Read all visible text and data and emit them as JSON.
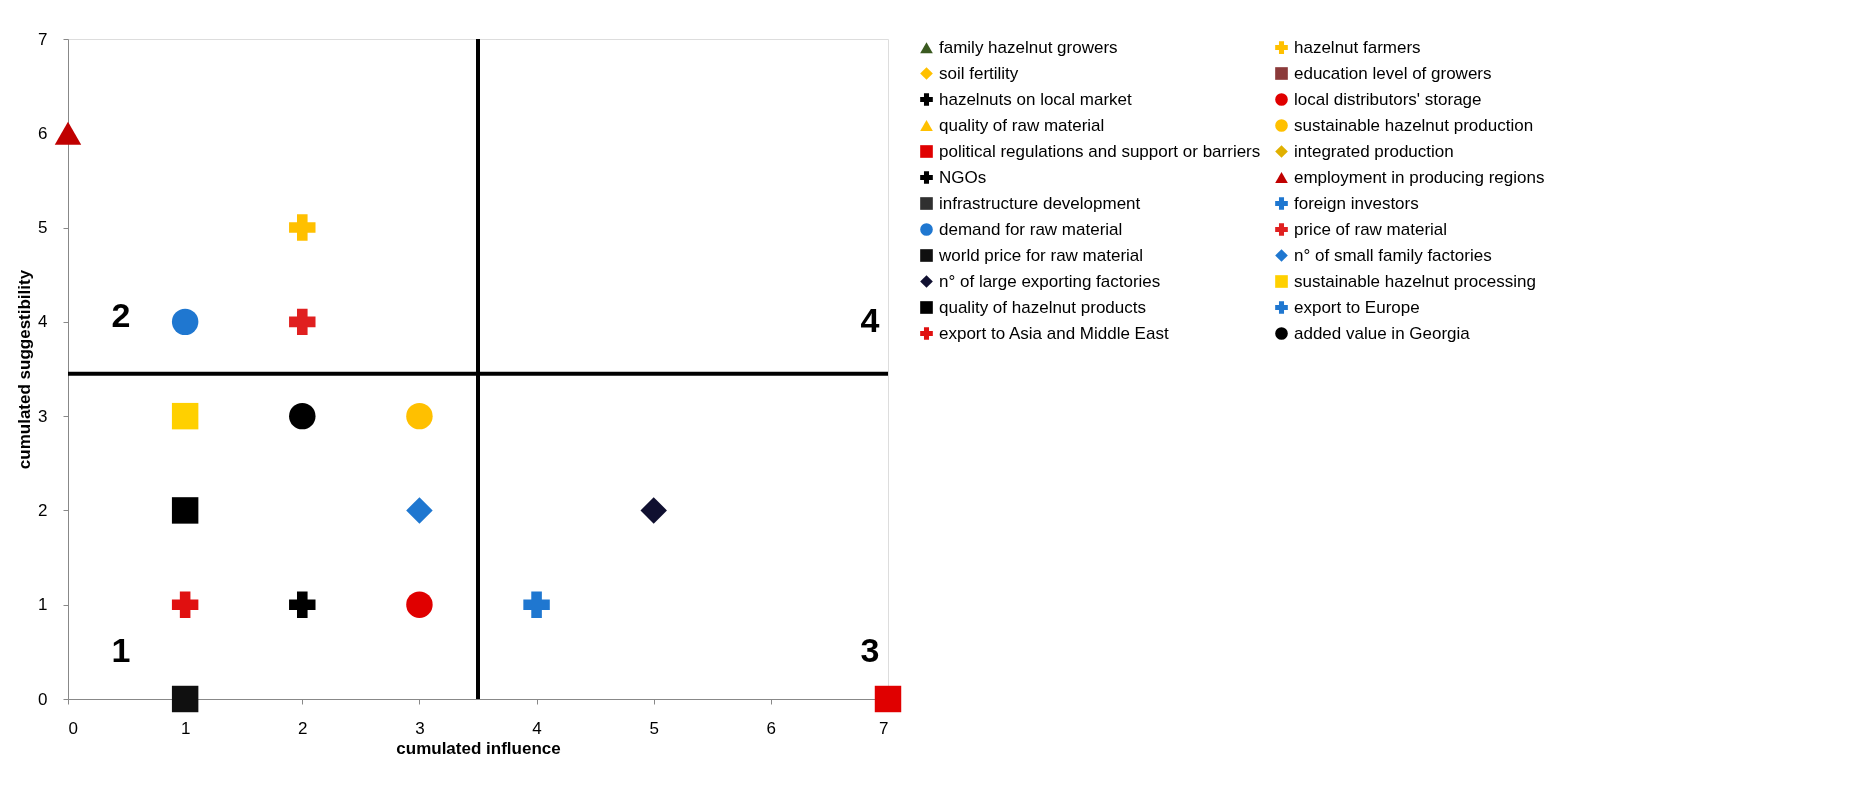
{
  "chart_data": {
    "type": "scatter",
    "xlabel": "cumulated influence",
    "ylabel": "cumulated suggestibility",
    "xlim": [
      0,
      7
    ],
    "ylim": [
      0,
      7
    ],
    "xticks": [
      0,
      1,
      2,
      3,
      4,
      5,
      6,
      7
    ],
    "yticks": [
      0,
      1,
      2,
      3,
      4,
      5,
      6,
      7
    ],
    "grid": false,
    "legend": "right",
    "series": [
      {
        "name": "family hazelnut growers",
        "color": "#3a5a20",
        "marker": "triangle",
        "x": [
          null
        ],
        "values": [
          null
        ]
      },
      {
        "name": "soil fertility",
        "color": "#ffc000",
        "marker": "diamond",
        "x": [
          null
        ],
        "values": [
          null
        ]
      },
      {
        "name": "hazelnuts on local market",
        "color": "#000000",
        "marker": "cross",
        "x": [
          null
        ],
        "values": [
          null
        ]
      },
      {
        "name": "quality of raw material",
        "color": "#ffc000",
        "marker": "triangle",
        "x": [
          null
        ],
        "values": [
          null
        ]
      },
      {
        "name": "political regulations and support or barriers",
        "color": "#e00000",
        "marker": "square",
        "x": [
          7
        ],
        "values": [
          0
        ]
      },
      {
        "name": "NGOs",
        "color": "#000000",
        "marker": "cross",
        "x": [
          2
        ],
        "values": [
          1
        ]
      },
      {
        "name": "infrastructure development",
        "color": "#303030",
        "marker": "square",
        "x": [
          null
        ],
        "values": [
          null
        ]
      },
      {
        "name": "demand for raw material",
        "color": "#1f77d0",
        "marker": "circle",
        "x": [
          1
        ],
        "values": [
          4
        ]
      },
      {
        "name": "world price for raw material",
        "color": "#101010",
        "marker": "square",
        "x": [
          1
        ],
        "values": [
          0
        ]
      },
      {
        "name": "n° of large exporting factories",
        "color": "#101030",
        "marker": "diamond",
        "x": [
          5
        ],
        "values": [
          2
        ]
      },
      {
        "name": "quality of hazelnut products",
        "color": "#000000",
        "marker": "square",
        "x": [
          1
        ],
        "values": [
          2
        ]
      },
      {
        "name": "export to Asia and Middle East",
        "color": "#e01010",
        "marker": "cross",
        "x": [
          1
        ],
        "values": [
          1
        ]
      },
      {
        "name": "hazelnut farmers",
        "color": "#ffc000",
        "marker": "cross",
        "x": [
          2
        ],
        "values": [
          5
        ]
      },
      {
        "name": "education level of growers",
        "color": "#8b3a3a",
        "marker": "square",
        "x": [
          null
        ],
        "values": [
          null
        ]
      },
      {
        "name": "local distributors' storage",
        "color": "#e00000",
        "marker": "circle",
        "x": [
          3
        ],
        "values": [
          1
        ]
      },
      {
        "name": "sustainable hazelnut production",
        "color": "#ffc000",
        "marker": "circle",
        "x": [
          3
        ],
        "values": [
          3
        ]
      },
      {
        "name": "integrated production",
        "color": "#e0b000",
        "marker": "diamond",
        "x": [
          null
        ],
        "values": [
          null
        ]
      },
      {
        "name": "employment in producing regions",
        "color": "#c00000",
        "marker": "triangle",
        "x": [
          0
        ],
        "values": [
          6
        ]
      },
      {
        "name": "foreign investors",
        "color": "#1f77d0",
        "marker": "cross",
        "x": [
          4
        ],
        "values": [
          1
        ]
      },
      {
        "name": "price of raw material",
        "color": "#e02020",
        "marker": "cross",
        "x": [
          2
        ],
        "values": [
          4
        ]
      },
      {
        "name": "n° of small family factories",
        "color": "#1f77d0",
        "marker": "diamond",
        "x": [
          3
        ],
        "values": [
          2
        ]
      },
      {
        "name": "sustainable hazelnut processing",
        "color": "#ffd000",
        "marker": "square",
        "x": [
          1
        ],
        "values": [
          3
        ]
      },
      {
        "name": "export to Europe",
        "color": "#1f77d0",
        "marker": "cross",
        "x": [
          null
        ],
        "values": [
          null
        ]
      },
      {
        "name": "added value in Georgia",
        "color": "#000000",
        "marker": "circle",
        "x": [
          2
        ],
        "values": [
          3
        ]
      }
    ],
    "ref_lines": [
      {
        "axis": "x",
        "value": 3.5,
        "color": "#000000"
      },
      {
        "axis": "y",
        "value": 3.45,
        "color": "#000000"
      }
    ],
    "annotations": [
      "1",
      "2",
      "3",
      "4"
    ]
  }
}
